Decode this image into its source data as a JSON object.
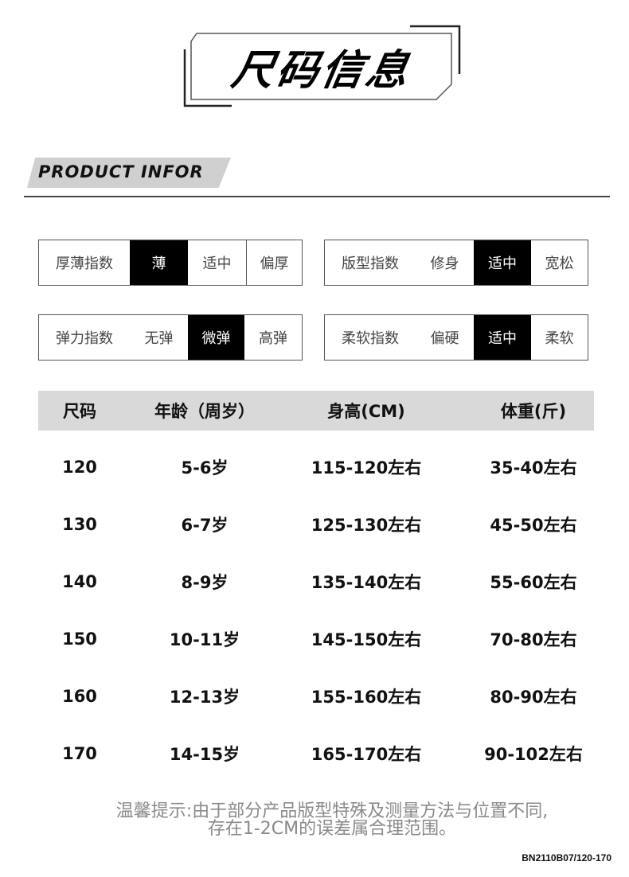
{
  "title": "尺码信息",
  "banner": "PRODUCT INFOR",
  "indices": [
    {
      "label": "厚薄指数",
      "options": [
        "薄",
        "适中",
        "偏厚"
      ],
      "selected": "薄"
    },
    {
      "label": "版型指数",
      "options": [
        "修身",
        "适中",
        "宽松"
      ],
      "selected": "适中"
    },
    {
      "label": "弹力指数",
      "options": [
        "无弹",
        "微弹",
        "高弹"
      ],
      "selected": "微弹"
    },
    {
      "label": "柔软指数",
      "options": [
        "偏硬",
        "适中",
        "柔软"
      ],
      "selected": "适中"
    }
  ],
  "table": {
    "headers": [
      "尺码",
      "年龄（周岁）",
      "身高(CM)",
      "体重(斤)"
    ],
    "rows": [
      [
        "120",
        "5-6岁",
        "115-120左右",
        "35-40左右"
      ],
      [
        "130",
        "6-7岁",
        "125-130左右",
        "45-50左右"
      ],
      [
        "140",
        "8-9岁",
        "135-140左右",
        "55-60左右"
      ],
      [
        "150",
        "10-11岁",
        "145-150左右",
        "70-80左右"
      ],
      [
        "160",
        "12-13岁",
        "155-160左右",
        "80-90左右"
      ],
      [
        "170",
        "14-15岁",
        "165-170左右",
        "90-102左右"
      ]
    ]
  },
  "note": {
    "line1": "温馨提示:由于部分产品版型特殊及测量方法与位置不同,",
    "line2": "存在1-2CM的误差属合理范围。"
  },
  "code": "BN2110B07/120-170"
}
